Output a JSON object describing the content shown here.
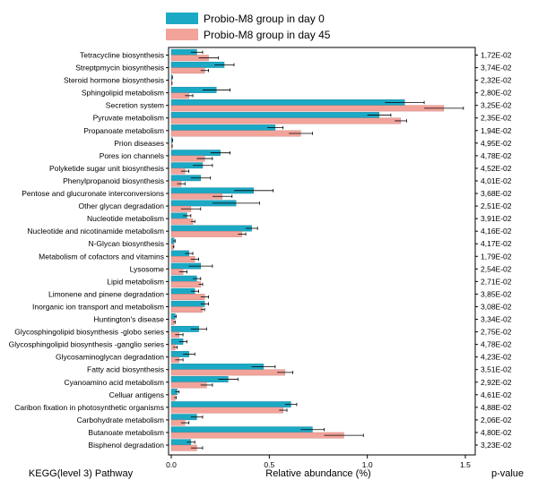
{
  "chart_data": {
    "type": "bar",
    "orientation": "horizontal",
    "xlabel": "Relative abundance (%)",
    "ylabel": "KEGG(level 3) Pathway",
    "pvalue_header": "p-value",
    "xlim": [
      0,
      1.5
    ],
    "xticks": [
      0,
      0.5,
      1,
      1.5
    ],
    "xtick_labels": [
      "0.0",
      "0.5",
      "1.0",
      "1.5"
    ],
    "grid": false,
    "legend_position": "top",
    "colors": {
      "day0": "#1BA9C5",
      "day45": "#F2A39A",
      "error": "#000000",
      "frame": "#000000"
    },
    "categories": [
      "Tetracycline biosynthesis",
      "Streptpmycin biosynthesis",
      "Steroid hormone biosynthesis",
      "Sphingolipid metabolism",
      "Secretion system",
      "Pyruvate metabolism",
      "Propanoate metabolism",
      "Prion diseases",
      "Pores ion channels",
      "Polyketide sugar unit biosynthesis",
      "Phenylpropanoid biosynthesis",
      "Pentose and glucuronate interconversions",
      "Other glycan degradation",
      "Nucleotide metabolism",
      "Nucleotide and nicotinamide metabolism",
      "N-Glycan biosynthesis",
      "Metabolism of cofactors and vitamins",
      "Lysosome",
      "Lipid metabolism",
      "Limonene and pinene degradation",
      "Inorganic ion transport and metabolism",
      "Huntington's disease",
      "Glycosphingolipid biosynthesis -globo series",
      "Glycosphingolipid biosynthesis -ganglio series",
      "Glycosaminoglycan degradation",
      "Fatty acid biosynthesis",
      "Cyanoamino acid metabolism",
      "Celluar antigens",
      "Caribon fixation in photosynthetic organisms",
      "Carbohydrate metabolism",
      "Butanoate metabolism",
      "Bisphenol degradation"
    ],
    "p_values": [
      "1,72E-02",
      "3,74E-02",
      "2,32E-02",
      "2,80E-02",
      "3,25E-02",
      "2,35E-02",
      "1,94E-02",
      "4,95E-02",
      "4,78E-02",
      "4,52E-02",
      "4,01E-02",
      "3,68E-02",
      "2,51E-02",
      "3,91E-02",
      "4,16E-02",
      "4,17E-02",
      "1,79E-02",
      "2,54E-02",
      "2,71E-02",
      "3,85E-02",
      "3,08E-02",
      "3,34E-02",
      "2,75E-02",
      "4,78E-02",
      "4,23E-02",
      "3,51E-02",
      "2,92E-02",
      "4,61E-02",
      "4,88E-02",
      "2,06E-02",
      "4,80E-02",
      "3,23E-02"
    ],
    "series": [
      {
        "name": "Probio-M8 group in day 0",
        "key": "day0",
        "values": [
          0.13,
          0.27,
          0.004,
          0.23,
          1.19,
          1.06,
          0.53,
          0.005,
          0.25,
          0.16,
          0.15,
          0.42,
          0.33,
          0.08,
          0.41,
          0.015,
          0.09,
          0.15,
          0.13,
          0.12,
          0.17,
          0.02,
          0.14,
          0.06,
          0.09,
          0.47,
          0.29,
          0.03,
          0.61,
          0.13,
          0.72,
          0.1
        ],
        "errors": [
          0.03,
          0.05,
          0.002,
          0.07,
          0.1,
          0.06,
          0.04,
          0.002,
          0.05,
          0.05,
          0.05,
          0.1,
          0.12,
          0.02,
          0.03,
          0.005,
          0.02,
          0.06,
          0.02,
          0.02,
          0.02,
          0.005,
          0.04,
          0.02,
          0.03,
          0.06,
          0.05,
          0.01,
          0.03,
          0.03,
          0.06,
          0.02
        ]
      },
      {
        "name": "Probio-M8 group in day 45",
        "key": "day45",
        "values": [
          0.19,
          0.17,
          0.003,
          0.09,
          1.39,
          1.17,
          0.66,
          0.004,
          0.17,
          0.07,
          0.05,
          0.26,
          0.1,
          0.11,
          0.36,
          0.01,
          0.12,
          0.06,
          0.15,
          0.17,
          0.16,
          0.015,
          0.04,
          0.02,
          0.04,
          0.58,
          0.18,
          0.02,
          0.57,
          0.07,
          0.88,
          0.13
        ],
        "errors": [
          0.05,
          0.02,
          0.001,
          0.02,
          0.1,
          0.03,
          0.06,
          0.001,
          0.04,
          0.02,
          0.02,
          0.05,
          0.05,
          0.01,
          0.02,
          0.003,
          0.02,
          0.02,
          0.01,
          0.02,
          0.01,
          0.005,
          0.02,
          0.01,
          0.02,
          0.04,
          0.03,
          0.005,
          0.02,
          0.02,
          0.1,
          0.03
        ]
      }
    ]
  }
}
